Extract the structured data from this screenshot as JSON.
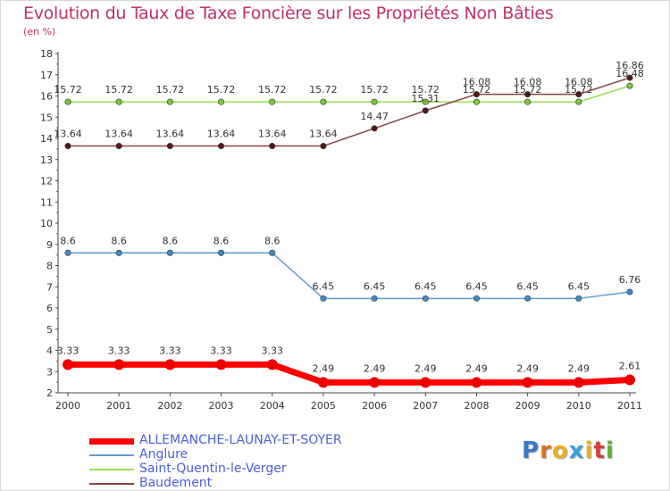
{
  "title": "Evolution du Taux de Taxe Foncière sur les Propriétés Non Bâties",
  "unit_label": "(en %)",
  "logo": {
    "text": "Proxiti",
    "letters": [
      "P",
      "r",
      "o",
      "x",
      "i",
      "t",
      "i"
    ],
    "colors": [
      "#3a78c8",
      "#e07020",
      "#e8b020",
      "#40a0e0",
      "#e8b020",
      "#d04040",
      "#60b030"
    ]
  },
  "chart_data": {
    "type": "line",
    "title": "Evolution du Taux de Taxe Foncière sur les Propriétés Non Bâties",
    "ylabel": "(en %)",
    "xlabel": "",
    "categories": [
      "2000",
      "2001",
      "2002",
      "2003",
      "2004",
      "2005",
      "2006",
      "2007",
      "2008",
      "2009",
      "2010",
      "2011"
    ],
    "ylim": [
      2,
      18
    ],
    "yticks": [
      "2",
      "3",
      "4",
      "5",
      "6",
      "7",
      "8",
      "9",
      "10",
      "11",
      "12",
      "13",
      "14",
      "15",
      "16",
      "17",
      "18"
    ],
    "grid": false,
    "legend_position": "bottom-left",
    "series": [
      {
        "name": "Saint-Quentin-le-Verger",
        "color": "#99dd55",
        "marker": "#77cc33",
        "width": 1.5,
        "values": [
          15.72,
          15.72,
          15.72,
          15.72,
          15.72,
          15.72,
          15.72,
          15.72,
          15.72,
          15.72,
          15.72,
          16.48
        ],
        "labels": [
          "15.72",
          "15.72",
          "15.72",
          "15.72",
          "15.72",
          "15.72",
          "15.72",
          "15.72",
          "15.72",
          "15.72",
          "15.72",
          "16.48"
        ]
      },
      {
        "name": "Baudement",
        "color": "#884444",
        "marker": "#551818",
        "width": 1.5,
        "values": [
          13.64,
          13.64,
          13.64,
          13.64,
          13.64,
          13.64,
          14.47,
          15.31,
          16.08,
          16.08,
          16.08,
          16.86
        ],
        "labels": [
          "13.64",
          "13.64",
          "13.64",
          "13.64",
          "13.64",
          "13.64",
          "14.47",
          "15.31",
          "16.08",
          "16.08",
          "16.08",
          "16.86"
        ]
      },
      {
        "name": "Anglure",
        "color": "#6699cc",
        "marker": "#4488cc",
        "width": 1.5,
        "values": [
          8.6,
          8.6,
          8.6,
          8.6,
          8.6,
          6.45,
          6.45,
          6.45,
          6.45,
          6.45,
          6.45,
          6.76
        ],
        "labels": [
          "8.6",
          "8.6",
          "8.6",
          "8.6",
          "8.6",
          "6.45",
          "6.45",
          "6.45",
          "6.45",
          "6.45",
          "6.45",
          "6.76"
        ]
      },
      {
        "name": "ALLEMANCHE-LAUNAY-ET-SOYER",
        "color": "#ff0000",
        "marker": "#ee0000",
        "width": 7,
        "values": [
          3.33,
          3.33,
          3.33,
          3.33,
          3.33,
          2.49,
          2.49,
          2.49,
          2.49,
          2.49,
          2.49,
          2.61
        ],
        "labels": [
          "3.33",
          "3.33",
          "3.33",
          "3.33",
          "3.33",
          "2.49",
          "2.49",
          "2.49",
          "2.49",
          "2.49",
          "2.49",
          "2.61"
        ]
      }
    ],
    "legend": [
      "ALLEMANCHE-LAUNAY-ET-SOYER",
      "Anglure",
      "Saint-Quentin-le-Verger",
      "Baudement"
    ]
  }
}
